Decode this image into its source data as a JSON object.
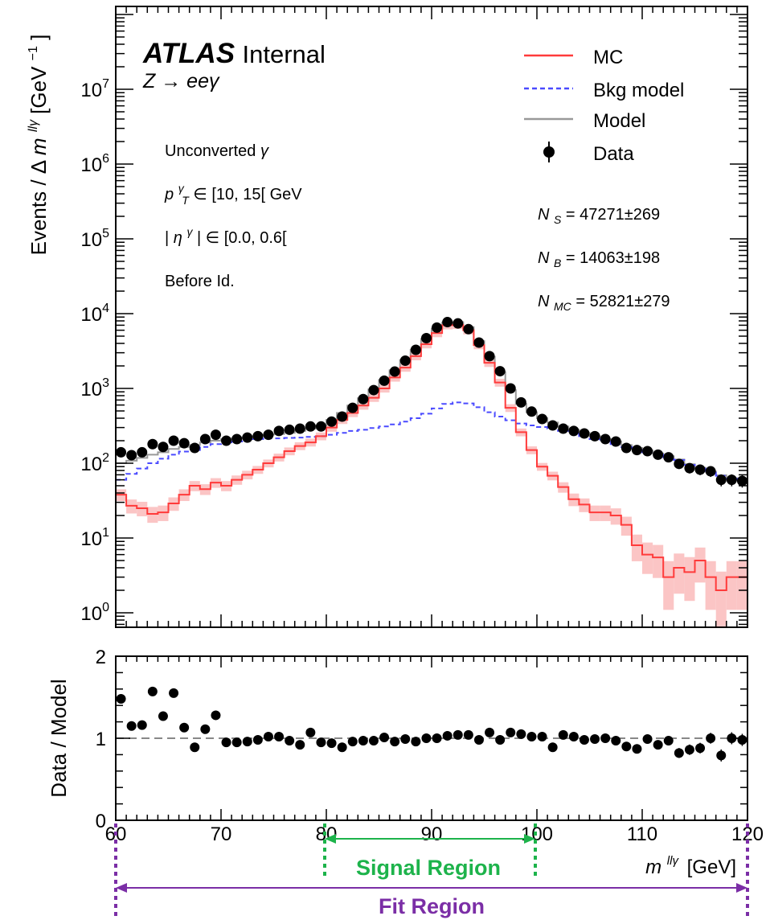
{
  "colors": {
    "mc": "#ff3b3b",
    "mc_band": "#fbc5c5",
    "bkg": "#4a4aff",
    "model": "#999999",
    "data": "#000000",
    "signal": "#1db34b",
    "fit": "#7b2ea6",
    "ratio_ref": "#888888"
  },
  "figure": {
    "experiment": "ATLAS",
    "status": "Internal",
    "process": "Z → eeγ",
    "selection": [
      "Unconverted γ",
      "p_T^γ ∈ [10, 15[ GeV",
      "|η^γ| ∈ [0.0, 0.6[",
      "Before Id."
    ],
    "counts": [
      "N_S = 47271±269",
      "N_B = 14063±198",
      "N_MC = 52821±279"
    ]
  },
  "chart_data": [
    {
      "type": "line",
      "panel": "main",
      "ylabel": "Events / Δm^llγ [GeV^-1]",
      "yscale": "log",
      "ylim": [
        0.5,
        800000000
      ],
      "xlim": [
        60,
        120
      ],
      "ytick_labels": [
        "10^0",
        "10^1",
        "10^2",
        "10^3",
        "10^4",
        "10^5",
        "10^6",
        "10^7"
      ],
      "legend": {
        "position": "top-right",
        "entries": [
          "MC",
          "Bkg model",
          "Model",
          "Data"
        ]
      },
      "x": [
        60.5,
        61.5,
        62.5,
        63.5,
        64.5,
        65.5,
        66.5,
        67.5,
        68.5,
        69.5,
        70.5,
        71.5,
        72.5,
        73.5,
        74.5,
        75.5,
        76.5,
        77.5,
        78.5,
        79.5,
        80.5,
        81.5,
        82.5,
        83.5,
        84.5,
        85.5,
        86.5,
        87.5,
        88.5,
        89.5,
        90.5,
        91.5,
        92.5,
        93.5,
        94.5,
        95.5,
        96.5,
        97.5,
        98.5,
        99.5,
        100.5,
        101.5,
        102.5,
        103.5,
        104.5,
        105.5,
        106.5,
        107.5,
        108.5,
        109.5,
        110.5,
        111.5,
        112.5,
        113.5,
        114.5,
        115.5,
        116.5,
        117.5,
        118.5,
        119.5
      ],
      "series": [
        {
          "name": "MC",
          "style": "step",
          "values": [
            38,
            27,
            25,
            21,
            22,
            29,
            38,
            50,
            45,
            55,
            50,
            60,
            70,
            82,
            100,
            120,
            145,
            170,
            190,
            230,
            300,
            380,
            470,
            590,
            750,
            1000,
            1400,
            1900,
            2700,
            3900,
            5500,
            7000,
            7100,
            6000,
            3800,
            2200,
            1200,
            550,
            260,
            150,
            90,
            68,
            48,
            33,
            28,
            22,
            22,
            20,
            15,
            8,
            6,
            5.5,
            3,
            4,
            3.5,
            5,
            3,
            2,
            3,
            3
          ]
        },
        {
          "name": "Bkg model",
          "style": "step",
          "values": [
            60,
            72,
            85,
            100,
            115,
            130,
            143,
            150,
            165,
            180,
            190,
            195,
            200,
            210,
            215,
            215,
            218,
            220,
            225,
            230,
            240,
            255,
            270,
            280,
            295,
            310,
            330,
            360,
            400,
            460,
            540,
            620,
            650,
            630,
            560,
            480,
            420,
            375,
            340,
            320,
            305,
            290,
            270,
            250,
            230,
            210,
            195,
            180,
            165,
            150,
            140,
            130,
            120,
            110,
            95,
            85,
            75,
            68,
            62,
            58
          ]
        },
        {
          "name": "Model",
          "style": "step",
          "values": [
            100,
            108,
            118,
            130,
            140,
            155,
            165,
            175,
            190,
            200,
            210,
            215,
            220,
            230,
            240,
            245,
            255,
            270,
            290,
            320,
            380,
            470,
            590,
            740,
            970,
            1300,
            1750,
            2400,
            3300,
            4600,
            6300,
            7600,
            7700,
            6600,
            4300,
            2650,
            1650,
            950,
            620,
            480,
            400,
            350,
            310,
            280,
            255,
            230,
            210,
            195,
            175,
            160,
            148,
            135,
            124,
            112,
            97,
            87,
            77,
            69,
            63,
            59
          ]
        },
        {
          "name": "Data",
          "style": "points",
          "values": [
            140,
            128,
            140,
            180,
            165,
            200,
            185,
            160,
            210,
            240,
            200,
            210,
            220,
            230,
            240,
            270,
            280,
            290,
            310,
            310,
            360,
            420,
            550,
            720,
            950,
            1270,
            1680,
            2350,
            3280,
            4700,
            6500,
            7700,
            7400,
            6200,
            4100,
            2700,
            1700,
            1000,
            650,
            490,
            390,
            320,
            290,
            270,
            250,
            230,
            210,
            195,
            160,
            150,
            145,
            130,
            120,
            98,
            86,
            82,
            78,
            60,
            60,
            58
          ]
        }
      ]
    },
    {
      "type": "scatter",
      "panel": "ratio",
      "ylabel": "Data / Model",
      "xlabel": "m^llγ [GeV]",
      "xlim": [
        60,
        120
      ],
      "ylim": [
        0,
        2
      ],
      "ytick_labels": [
        "0",
        "1",
        "2"
      ],
      "xtick_labels": [
        "60",
        "70",
        "80",
        "90",
        "100",
        "110",
        "120"
      ],
      "reference": 1,
      "x": [
        60.5,
        61.5,
        62.5,
        63.5,
        64.5,
        65.5,
        66.5,
        67.5,
        68.5,
        69.5,
        70.5,
        71.5,
        72.5,
        73.5,
        74.5,
        75.5,
        76.5,
        77.5,
        78.5,
        79.5,
        80.5,
        81.5,
        82.5,
        83.5,
        84.5,
        85.5,
        86.5,
        87.5,
        88.5,
        89.5,
        90.5,
        91.5,
        92.5,
        93.5,
        94.5,
        95.5,
        96.5,
        97.5,
        98.5,
        99.5,
        100.5,
        101.5,
        102.5,
        103.5,
        104.5,
        105.5,
        106.5,
        107.5,
        108.5,
        109.5,
        110.5,
        111.5,
        112.5,
        113.5,
        114.5,
        115.5,
        116.5,
        117.5,
        118.5,
        119.5
      ],
      "series": [
        {
          "name": "Data",
          "values": [
            1.48,
            1.15,
            1.16,
            1.57,
            1.27,
            1.55,
            1.13,
            0.89,
            1.11,
            1.28,
            0.95,
            0.95,
            0.96,
            0.98,
            1.02,
            1.02,
            0.97,
            0.92,
            1.07,
            0.95,
            0.94,
            0.89,
            0.96,
            0.97,
            0.97,
            1.01,
            0.96,
            0.99,
            0.96,
            1.0,
            1.0,
            1.03,
            1.04,
            1.04,
            0.98,
            1.07,
            0.98,
            1.07,
            1.05,
            1.02,
            1.02,
            0.89,
            1.04,
            1.02,
            0.98,
            0.99,
            1.0,
            0.97,
            0.9,
            0.87,
            0.99,
            0.92,
            0.97,
            0.82,
            0.86,
            0.88,
            1.0,
            0.79,
            1.0,
            0.98
          ]
        }
      ]
    }
  ],
  "annotations": {
    "signal_region": {
      "label": "Signal Region",
      "range": [
        80,
        100
      ]
    },
    "fit_region": {
      "label": "Fit Region",
      "range": [
        60,
        120
      ]
    }
  }
}
